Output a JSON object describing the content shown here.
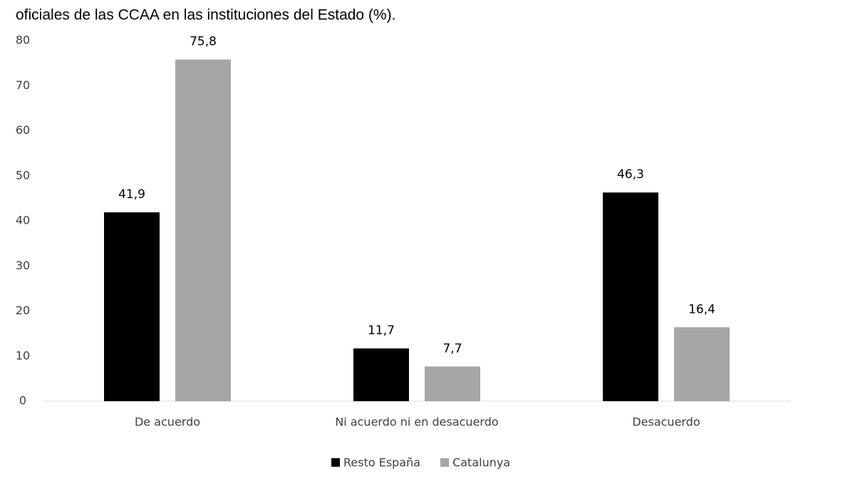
{
  "chart_data": {
    "type": "bar",
    "title": "oficiales de las CCAA en las instituciones del Estado (%).",
    "categories": [
      "De acuerdo",
      "Ni acuerdo ni en desacuerdo",
      "Desacuerdo"
    ],
    "series": [
      {
        "name": "Resto España",
        "color": "#000000",
        "values": [
          41.9,
          11.7,
          46.3
        ],
        "value_labels": [
          "41,9",
          "11,7",
          "46,3"
        ]
      },
      {
        "name": "Catalunya",
        "color": "#a6a6a6",
        "values": [
          75.8,
          7.7,
          16.4
        ],
        "value_labels": [
          "75,8",
          "7,7",
          "16,4"
        ]
      }
    ],
    "ylim": [
      0,
      80
    ],
    "yticks": [
      0,
      10,
      20,
      30,
      40,
      50,
      60,
      70,
      80
    ],
    "grid": false,
    "legend": "bottom"
  }
}
